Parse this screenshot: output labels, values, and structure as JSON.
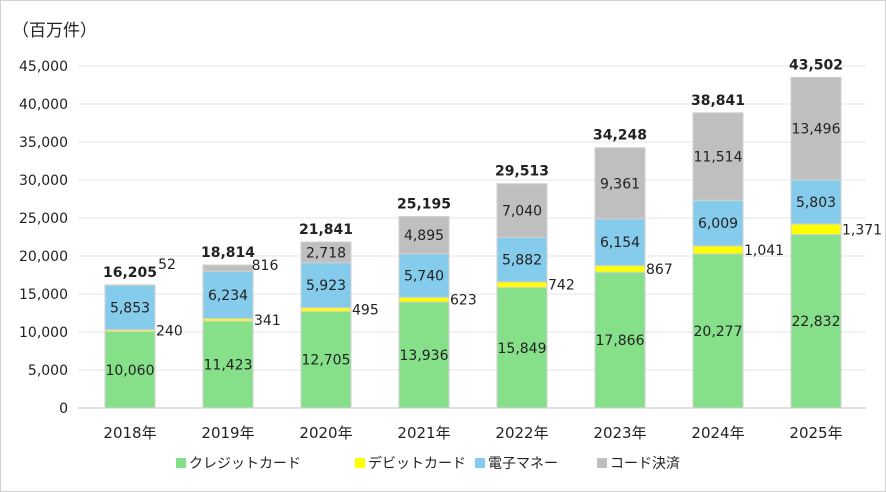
{
  "chart_data": {
    "type": "stacked-bar",
    "unit_label": "（百万件）",
    "categories": [
      "2018年",
      "2019年",
      "2020年",
      "2021年",
      "2022年",
      "2023年",
      "2024年",
      "2025年"
    ],
    "series": [
      {
        "name": "クレジットカード",
        "color": "#86E08A",
        "values": [
          10060,
          11423,
          12705,
          13936,
          15849,
          17866,
          20277,
          22832
        ]
      },
      {
        "name": "デビットカード",
        "color": "#FFFF00",
        "values": [
          240,
          341,
          495,
          623,
          742,
          867,
          1041,
          1371
        ]
      },
      {
        "name": "電子マネー",
        "color": "#85CBEB",
        "values": [
          5853,
          6234,
          5923,
          5740,
          5882,
          6154,
          6009,
          5803
        ]
      },
      {
        "name": "コード決済",
        "color": "#BFBFBF",
        "values": [
          52,
          816,
          2718,
          4895,
          7040,
          9361,
          11514,
          13496
        ]
      }
    ],
    "totals": [
      16205,
      18814,
      21841,
      25195,
      29513,
      34248,
      38841,
      43502
    ],
    "ylim": [
      0,
      45000
    ],
    "yticks": [
      "0",
      "5,000",
      "10,000",
      "15,000",
      "20,000",
      "25,000",
      "30,000",
      "35,000",
      "40,000",
      "45,000"
    ],
    "grid": true,
    "legend": "bottom"
  }
}
